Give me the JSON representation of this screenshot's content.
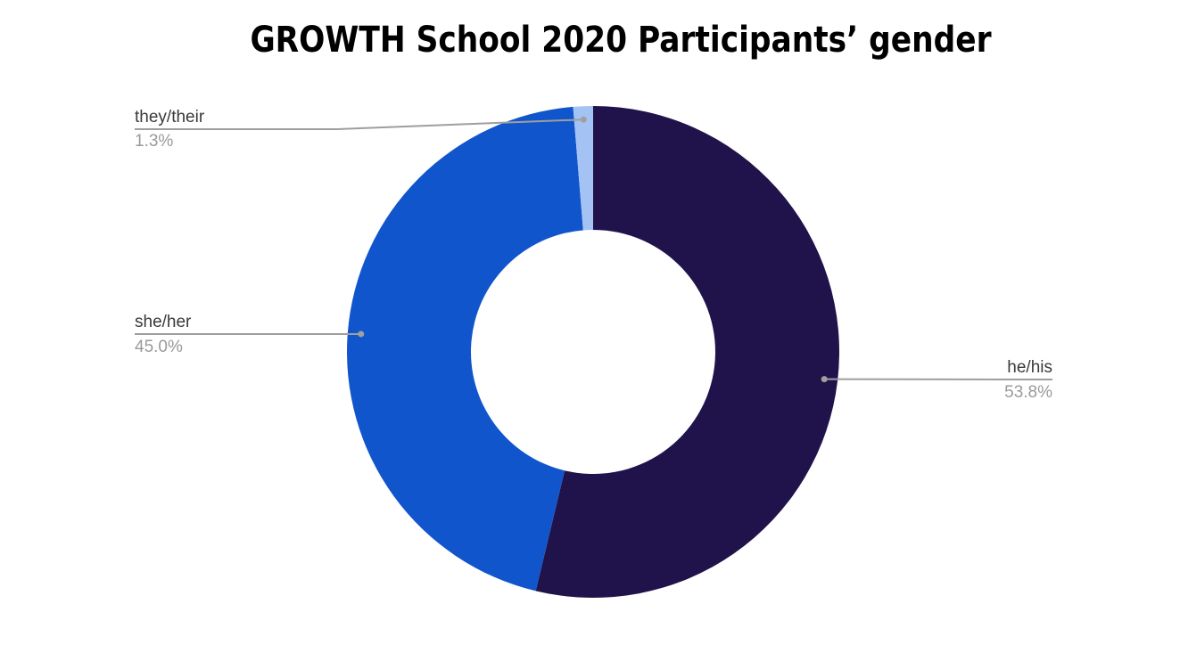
{
  "chart_data": {
    "type": "pie",
    "donut": true,
    "title": "GROWTH School 2020 Participants’ gender",
    "categories": [
      "he/his",
      "she/her",
      "they/their"
    ],
    "values": [
      53.8,
      45.0,
      1.3
    ],
    "value_labels": [
      "53.8%",
      "45.0%",
      "1.3%"
    ],
    "colors": [
      "#20134b",
      "#1155cc",
      "#a4c2f4"
    ],
    "legend": "none",
    "labels": "outside with leader lines"
  }
}
